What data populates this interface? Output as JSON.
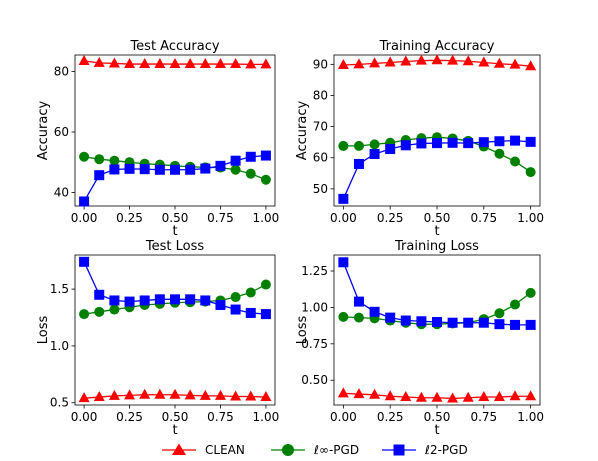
{
  "legend": [
    {
      "label": "CLEAN",
      "color": "#ff0000",
      "marker": "triangle"
    },
    {
      "label": "ℓ∞-PGD",
      "color": "#008000",
      "marker": "circle"
    },
    {
      "label": "ℓ2-PGD",
      "color": "#0000ff",
      "marker": "square"
    }
  ],
  "chart_data": [
    {
      "type": "line",
      "title": "Test Accuracy",
      "xlabel": "t",
      "ylabel": "Accuracy",
      "xlim": [
        -0.05,
        1.05
      ],
      "ylim": [
        35.5,
        85.5
      ],
      "xticks": [
        0.0,
        0.25,
        0.5,
        0.75,
        1.0
      ],
      "xtick_labels": [
        "0.00",
        "0.25",
        "0.50",
        "0.75",
        "1.00"
      ],
      "yticks": [
        40,
        60,
        80
      ],
      "ytick_labels": [
        "40",
        "60",
        "80"
      ],
      "x": [
        0.0,
        0.0833,
        0.1667,
        0.25,
        0.3333,
        0.4167,
        0.5,
        0.5833,
        0.6667,
        0.75,
        0.8333,
        0.9167,
        1.0
      ],
      "series": [
        {
          "name": "CLEAN",
          "values": [
            83.5,
            82.9,
            82.7,
            82.5,
            82.5,
            82.5,
            82.5,
            82.5,
            82.5,
            82.5,
            82.5,
            82.4,
            82.4
          ]
        },
        {
          "name": "ℓ∞-PGD",
          "values": [
            51.8,
            51.0,
            50.5,
            50.0,
            49.5,
            49.2,
            48.8,
            48.5,
            48.3,
            48.2,
            47.5,
            46.2,
            44.2
          ]
        },
        {
          "name": "ℓ2-PGD",
          "values": [
            37.0,
            45.7,
            47.6,
            47.8,
            47.7,
            47.5,
            47.5,
            47.5,
            47.9,
            48.8,
            50.5,
            51.8,
            52.2
          ]
        }
      ]
    },
    {
      "type": "line",
      "title": "Training Accuracy",
      "xlabel": "t",
      "ylabel": "Accuracy",
      "xlim": [
        -0.05,
        1.05
      ],
      "ylim": [
        44.5,
        93.0
      ],
      "xticks": [
        0.0,
        0.25,
        0.5,
        0.75,
        1.0
      ],
      "xtick_labels": [
        "0.00",
        "0.25",
        "0.50",
        "0.75",
        "1.00"
      ],
      "yticks": [
        50,
        60,
        70,
        80,
        90
      ],
      "ytick_labels": [
        "50",
        "60",
        "70",
        "80",
        "90"
      ],
      "x": [
        0.0,
        0.0833,
        0.1667,
        0.25,
        0.3333,
        0.4167,
        0.5,
        0.5833,
        0.6667,
        0.75,
        0.8333,
        0.9167,
        1.0
      ],
      "series": [
        {
          "name": "CLEAN",
          "values": [
            89.8,
            90.0,
            90.3,
            90.6,
            90.9,
            91.2,
            91.3,
            91.2,
            91.0,
            90.6,
            90.2,
            89.9,
            89.4
          ]
        },
        {
          "name": "ℓ∞-PGD",
          "values": [
            63.8,
            63.8,
            64.3,
            64.8,
            65.7,
            66.3,
            66.6,
            66.2,
            65.4,
            63.6,
            61.3,
            58.8,
            55.4
          ]
        },
        {
          "name": "ℓ2-PGD",
          "values": [
            46.8,
            58.0,
            61.2,
            62.8,
            64.0,
            64.6,
            64.7,
            64.8,
            64.7,
            65.0,
            65.3,
            65.5,
            65.1
          ]
        }
      ]
    },
    {
      "type": "line",
      "title": "Test Loss",
      "xlabel": "t",
      "ylabel": "Loss",
      "xlim": [
        -0.05,
        1.05
      ],
      "ylim": [
        0.48,
        1.8
      ],
      "xticks": [
        0.0,
        0.25,
        0.5,
        0.75,
        1.0
      ],
      "xtick_labels": [
        "0.00",
        "0.25",
        "0.50",
        "0.75",
        "1.00"
      ],
      "yticks": [
        0.5,
        1.0,
        1.5
      ],
      "ytick_labels": [
        "0.5",
        "1.0",
        "1.5"
      ],
      "x": [
        0.0,
        0.0833,
        0.1667,
        0.25,
        0.3333,
        0.4167,
        0.5,
        0.5833,
        0.6667,
        0.75,
        0.8333,
        0.9167,
        1.0
      ],
      "series": [
        {
          "name": "CLEAN",
          "values": [
            0.54,
            0.55,
            0.56,
            0.565,
            0.57,
            0.57,
            0.57,
            0.565,
            0.56,
            0.56,
            0.555,
            0.555,
            0.55
          ]
        },
        {
          "name": "ℓ∞-PGD",
          "values": [
            1.28,
            1.3,
            1.32,
            1.34,
            1.36,
            1.37,
            1.38,
            1.385,
            1.39,
            1.4,
            1.43,
            1.47,
            1.54
          ]
        },
        {
          "name": "ℓ2-PGD",
          "values": [
            1.74,
            1.45,
            1.4,
            1.39,
            1.4,
            1.41,
            1.41,
            1.41,
            1.4,
            1.36,
            1.32,
            1.29,
            1.28
          ]
        }
      ]
    },
    {
      "type": "line",
      "title": "Training Loss",
      "xlabel": "t",
      "ylabel": "Loss",
      "xlim": [
        -0.05,
        1.05
      ],
      "ylim": [
        0.33,
        1.36
      ],
      "xticks": [
        0.0,
        0.25,
        0.5,
        0.75,
        1.0
      ],
      "xtick_labels": [
        "0.00",
        "0.25",
        "0.50",
        "0.75",
        "1.00"
      ],
      "yticks": [
        0.5,
        0.75,
        1.0,
        1.25
      ],
      "ytick_labels": [
        "0.50",
        "0.75",
        "1.00",
        "1.25"
      ],
      "x": [
        0.0,
        0.0833,
        0.1667,
        0.25,
        0.3333,
        0.4167,
        0.5,
        0.5833,
        0.6667,
        0.75,
        0.8333,
        0.9167,
        1.0
      ],
      "series": [
        {
          "name": "CLEAN",
          "values": [
            0.41,
            0.405,
            0.4,
            0.39,
            0.385,
            0.38,
            0.38,
            0.375,
            0.38,
            0.385,
            0.385,
            0.39,
            0.39
          ]
        },
        {
          "name": "ℓ∞-PGD",
          "values": [
            0.935,
            0.93,
            0.925,
            0.91,
            0.895,
            0.885,
            0.885,
            0.89,
            0.895,
            0.92,
            0.96,
            1.02,
            1.1
          ]
        },
        {
          "name": "ℓ2-PGD",
          "values": [
            1.31,
            1.04,
            0.97,
            0.93,
            0.91,
            0.905,
            0.9,
            0.895,
            0.895,
            0.895,
            0.885,
            0.88,
            0.88
          ]
        }
      ]
    }
  ]
}
